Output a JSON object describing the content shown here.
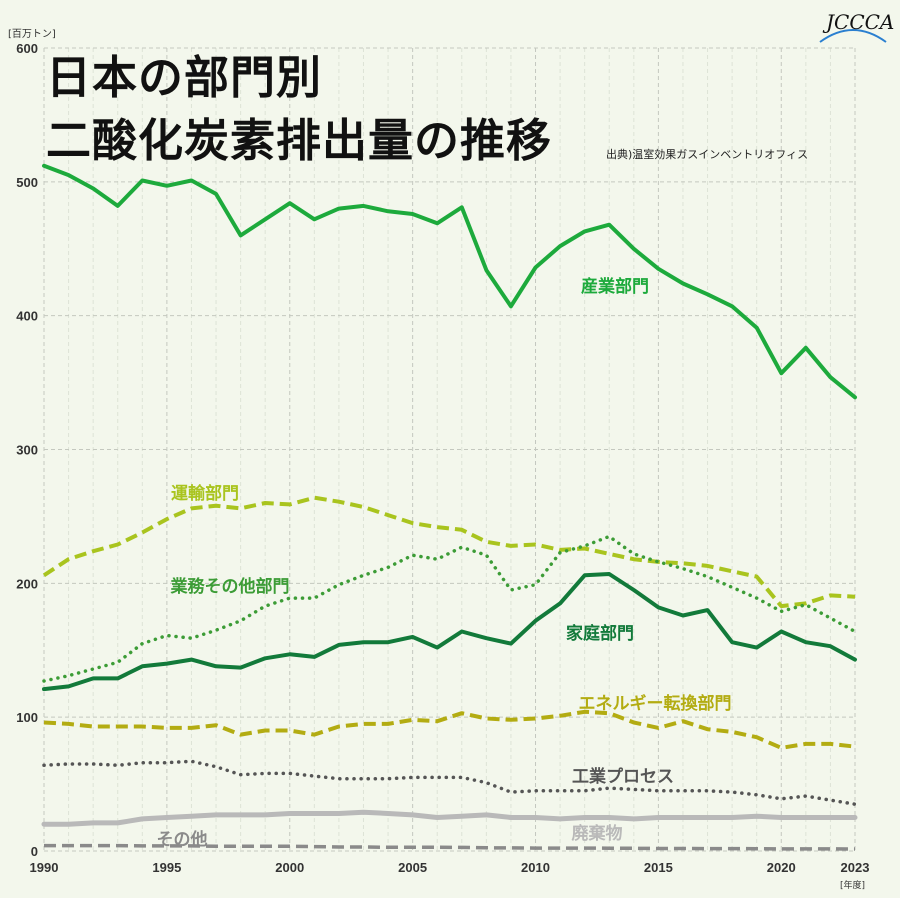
{
  "header": {
    "title_line1": "日本の部門別",
    "title_line2": "二酸化炭素排出量の推移",
    "source": "出典)温室効果ガスインベントリオフィス",
    "logo": "JCCCA"
  },
  "chart_data": {
    "type": "line",
    "ylabel": "[百万トン]",
    "xlabel": "[年度]",
    "ylim": [
      0,
      600
    ],
    "xlim": [
      1990,
      2023
    ],
    "yticks": [
      0,
      100,
      200,
      300,
      400,
      500,
      600
    ],
    "xticks": [
      1990,
      1995,
      2000,
      2005,
      2010,
      2015,
      2020,
      2023
    ],
    "grid": true,
    "x": [
      1990,
      1991,
      1992,
      1993,
      1994,
      1995,
      1996,
      1997,
      1998,
      1999,
      2000,
      2001,
      2002,
      2003,
      2004,
      2005,
      2006,
      2007,
      2008,
      2009,
      2010,
      2011,
      2012,
      2013,
      2014,
      2015,
      2016,
      2017,
      2018,
      2019,
      2020,
      2021,
      2022,
      2023
    ],
    "series": [
      {
        "name": "産業部門",
        "color": "#1daa3c",
        "style": "solid",
        "values": [
          512,
          505,
          495,
          482,
          501,
          497,
          501,
          491,
          460,
          472,
          484,
          472,
          480,
          482,
          478,
          476,
          469,
          481,
          434,
          407,
          436,
          452,
          463,
          468,
          450,
          435,
          424,
          416,
          407,
          391,
          357,
          376,
          354,
          339
        ]
      },
      {
        "name": "運輸部門",
        "color": "#a9c41e",
        "style": "dashed",
        "values": [
          206,
          218,
          224,
          229,
          238,
          248,
          256,
          258,
          256,
          260,
          259,
          264,
          261,
          257,
          251,
          245,
          242,
          240,
          231,
          228,
          229,
          225,
          226,
          222,
          218,
          216,
          215,
          213,
          209,
          205,
          183,
          185,
          191,
          190
        ]
      },
      {
        "name": "業務その他部門",
        "color": "#3c9c36",
        "style": "dotted",
        "values": [
          127,
          131,
          136,
          141,
          155,
          161,
          159,
          165,
          172,
          183,
          189,
          189,
          199,
          206,
          212,
          221,
          218,
          227,
          221,
          195,
          199,
          223,
          228,
          235,
          222,
          216,
          211,
          205,
          197,
          189,
          179,
          184,
          174,
          164
        ]
      },
      {
        "name": "家庭部門",
        "color": "#127a3a",
        "style": "solid",
        "values": [
          121,
          123,
          129,
          129,
          138,
          140,
          143,
          138,
          137,
          144,
          147,
          145,
          154,
          156,
          156,
          160,
          152,
          164,
          159,
          155,
          172,
          185,
          206,
          207,
          195,
          182,
          176,
          180,
          156,
          152,
          164,
          156,
          153,
          143
        ]
      },
      {
        "name": "エネルギー転換部門",
        "color": "#b3ac12",
        "style": "dashed",
        "values": [
          96,
          95,
          93,
          93,
          93,
          92,
          92,
          94,
          87,
          90,
          90,
          87,
          93,
          95,
          95,
          98,
          97,
          103,
          99,
          98,
          99,
          101,
          104,
          103,
          96,
          92,
          97,
          91,
          89,
          85,
          77,
          80,
          80,
          78
        ]
      },
      {
        "name": "工業プロセス",
        "color": "#555555",
        "style": "dotted",
        "values": [
          64,
          65,
          65,
          64,
          66,
          66,
          67,
          63,
          57,
          58,
          58,
          56,
          54,
          54,
          54,
          55,
          55,
          55,
          51,
          44,
          45,
          45,
          45,
          47,
          46,
          45,
          45,
          45,
          44,
          42,
          39,
          41,
          38,
          35
        ]
      },
      {
        "name": "廃棄物",
        "color": "#b9b9b9",
        "style": "solid",
        "values": [
          20,
          20,
          21,
          21,
          24,
          25,
          26,
          27,
          27,
          27,
          28,
          28,
          28,
          29,
          28,
          27,
          25,
          26,
          27,
          25,
          25,
          24,
          25,
          25,
          24,
          25,
          25,
          25,
          25,
          26,
          25,
          25,
          25,
          25
        ]
      },
      {
        "name": "その他",
        "color": "#8a8a8a",
        "style": "dashed",
        "values": [
          4,
          4,
          4,
          4,
          3.8,
          3.8,
          3.8,
          3.5,
          3.5,
          3.5,
          3.5,
          3.3,
          3,
          3,
          2.8,
          2.8,
          2.8,
          2.7,
          2.4,
          2.3,
          2.2,
          2.2,
          2.2,
          2.1,
          2,
          1.9,
          1.9,
          1.8,
          1.8,
          1.7,
          1.6,
          1.6,
          1.6,
          1.5
        ]
      }
    ]
  }
}
